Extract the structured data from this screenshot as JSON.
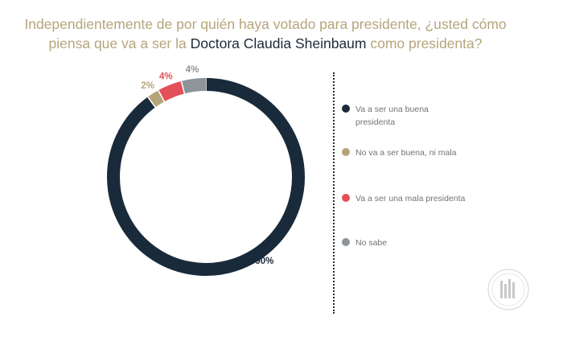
{
  "title": {
    "part1": "Independientemente de por quién haya votado para presidente, ¿usted cómo piensa que va a ser la ",
    "highlight": "Doctora Claudia Sheinbaum",
    "part2": " como presidenta?"
  },
  "chart_data": {
    "type": "pie",
    "style": "donut",
    "title": "Independientemente de por quién haya votado para presidente, ¿usted cómo piensa que va a ser la Doctora Claudia Sheinbaum como presidenta?",
    "categories": [
      "Va a ser una buena presidenta",
      "No va a ser buena, ni mala",
      "Va a ser una mala presidenta",
      "No sabe"
    ],
    "values": [
      90,
      2,
      4,
      4
    ],
    "labels": [
      "90%",
      "2%",
      "4%",
      "4%"
    ],
    "colors": [
      "#192a3a",
      "#b7a57a",
      "#e35058",
      "#8d949a"
    ],
    "label_colors": [
      "#192a3a",
      "#b7a57a",
      "#e35058",
      "#8d949a"
    ],
    "legend_position": "right"
  },
  "legend": [
    {
      "label": "Va a ser una buena presidenta",
      "color": "#192a3a"
    },
    {
      "label": "No va a ser buena, ni mala",
      "color": "#b7a57a"
    },
    {
      "label": "Va a ser una mala presidenta",
      "color": "#e35058"
    },
    {
      "label": "No sabe",
      "color": "#8d949a"
    }
  ],
  "logo": {
    "icon": "company-seal-icon"
  }
}
